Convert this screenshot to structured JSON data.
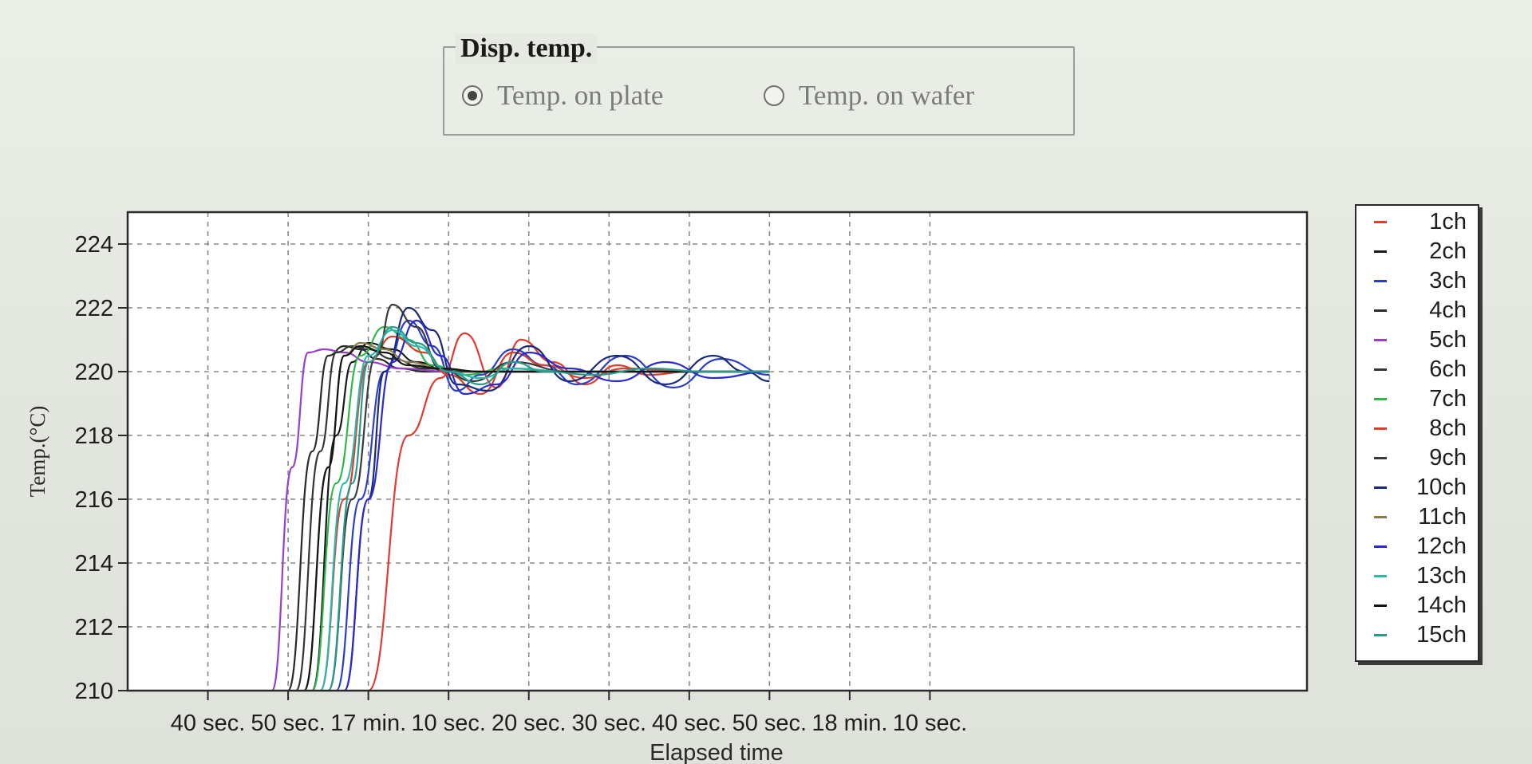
{
  "disp_temp": {
    "title": "Disp. temp.",
    "options": [
      {
        "label": "Temp. on plate",
        "selected": true
      },
      {
        "label": "Temp. on wafer",
        "selected": false
      }
    ]
  },
  "chart_data": {
    "type": "line",
    "xlabel": "Elapsed time",
    "ylabel": "Temp.(°C)",
    "ylim": [
      210,
      225
    ],
    "yticks": [
      210,
      212,
      214,
      216,
      218,
      220,
      222,
      224
    ],
    "xlim": [
      0,
      147
    ],
    "xticks": [
      {
        "t": 10,
        "label": "40 sec."
      },
      {
        "t": 20,
        "label": "50 sec."
      },
      {
        "t": 30,
        "label": "17 min."
      },
      {
        "t": 40,
        "label": "10 sec."
      },
      {
        "t": 50,
        "label": "20 sec."
      },
      {
        "t": 60,
        "label": "30 sec."
      },
      {
        "t": 70,
        "label": "40 sec."
      },
      {
        "t": 80,
        "label": "50 sec."
      },
      {
        "t": 90,
        "label": "18 min."
      },
      {
        "t": 100,
        "label": "10 sec."
      }
    ],
    "grid": true,
    "legend_position": "right",
    "series": [
      {
        "name": "1ch",
        "color": "#e03b2e",
        "x": [
          30,
          35,
          39,
          42,
          46,
          49,
          53,
          57,
          61,
          65,
          70,
          80
        ],
        "y": [
          210,
          218,
          219.8,
          221.2,
          219.5,
          221,
          220.3,
          219.6,
          220.2,
          219.9,
          220,
          220
        ]
      },
      {
        "name": "2ch",
        "color": "#1a1a1a",
        "x": [
          23,
          26,
          28,
          30,
          33,
          36,
          40,
          45,
          55,
          70,
          80
        ],
        "y": [
          210,
          218,
          220.3,
          220.9,
          220.7,
          220.3,
          220,
          220,
          220,
          220,
          220
        ]
      },
      {
        "name": "3ch",
        "color": "#2a3ec8",
        "x": [
          26,
          29,
          32,
          35,
          38,
          41,
          44,
          48,
          52,
          56,
          62,
          68,
          74,
          80
        ],
        "y": [
          210,
          216,
          220,
          221.6,
          220.8,
          219.4,
          219.9,
          220.7,
          220.2,
          219.6,
          220.5,
          219.5,
          220.4,
          219.9
        ]
      },
      {
        "name": "4ch",
        "color": "#2a2a2a",
        "x": [
          20,
          23,
          25,
          27,
          29,
          31,
          34,
          37,
          40,
          45,
          55,
          70,
          80
        ],
        "y": [
          210,
          217.5,
          220.5,
          220.8,
          220.7,
          220.4,
          220.1,
          220,
          220,
          220,
          220,
          220,
          220
        ]
      },
      {
        "name": "5ch",
        "color": "#9a3ec8",
        "x": [
          18,
          20.5,
          22.5,
          24.5,
          27,
          30,
          34,
          40,
          50,
          60,
          70,
          80
        ],
        "y": [
          210,
          217,
          220.6,
          220.7,
          220.6,
          220.3,
          220.1,
          220,
          220,
          220,
          220,
          220
        ]
      },
      {
        "name": "6ch",
        "color": "#2e3a2e",
        "x": [
          21,
          24,
          26,
          28,
          30,
          33,
          37,
          42,
          50,
          60,
          70,
          80
        ],
        "y": [
          210,
          217.5,
          220.6,
          220.8,
          220.7,
          220.4,
          220.1,
          220,
          220,
          220,
          220,
          220
        ]
      },
      {
        "name": "7ch",
        "color": "#2fb84a",
        "x": [
          23,
          26,
          29,
          32,
          35,
          38,
          42,
          47,
          55,
          65,
          80
        ],
        "y": [
          210,
          216.5,
          220.5,
          221.4,
          221,
          220.2,
          219.9,
          220.1,
          220,
          220,
          220
        ]
      },
      {
        "name": "8ch",
        "color": "#d8402c",
        "x": [
          24,
          27,
          30,
          33,
          37,
          40,
          44,
          48,
          52,
          57,
          62,
          70,
          80
        ],
        "y": [
          210,
          216,
          220.3,
          221.1,
          220.6,
          219.9,
          219.3,
          220.6,
          220.2,
          219.8,
          220.1,
          220,
          220
        ]
      },
      {
        "name": "9ch",
        "color": "#3a3a3a",
        "x": [
          25,
          28,
          31,
          33,
          36,
          39,
          43,
          48,
          55,
          65,
          80
        ],
        "y": [
          210,
          216,
          220.5,
          222.1,
          221.4,
          220.1,
          219.7,
          220.3,
          220,
          220,
          220
        ]
      },
      {
        "name": "10ch",
        "color": "#1a2a7a",
        "x": [
          27,
          30,
          32,
          35,
          38,
          41,
          45,
          50,
          55,
          61,
          67,
          73,
          77,
          80
        ],
        "y": [
          210,
          216,
          220,
          222,
          221.3,
          219.6,
          219.4,
          220.8,
          219.7,
          220.5,
          219.6,
          220.5,
          220,
          219.7
        ]
      },
      {
        "name": "11ch",
        "color": "#8a7a4a",
        "x": [
          22,
          25,
          27,
          29,
          32,
          35,
          39,
          44,
          50,
          60,
          80
        ],
        "y": [
          210,
          217,
          220.5,
          220.9,
          220.7,
          220.3,
          220.1,
          220,
          220,
          220,
          220
        ]
      },
      {
        "name": "12ch",
        "color": "#2a2ad0",
        "x": [
          27,
          30,
          33,
          36,
          39,
          42,
          46,
          50,
          55,
          61,
          67,
          73,
          80
        ],
        "y": [
          210,
          216,
          220.3,
          221.6,
          220.5,
          219.3,
          219.6,
          220.6,
          220.1,
          219.7,
          220.3,
          219.8,
          220
        ]
      },
      {
        "name": "13ch",
        "color": "#2ab8b0",
        "x": [
          24,
          27,
          30,
          33,
          36,
          40,
          44,
          48,
          55,
          65,
          80
        ],
        "y": [
          210,
          216.5,
          220.5,
          221.3,
          220.8,
          220,
          219.8,
          220.1,
          220,
          220,
          220
        ]
      },
      {
        "name": "14ch",
        "color": "#141414",
        "x": [
          22,
          25,
          27,
          29,
          32,
          35,
          39,
          44,
          50,
          60,
          80
        ],
        "y": [
          210,
          217,
          220.5,
          220.8,
          220.6,
          220.2,
          220.1,
          220,
          220,
          220,
          220
        ]
      },
      {
        "name": "15ch",
        "color": "#2a9a8a",
        "x": [
          25,
          28,
          30,
          33,
          36,
          40,
          44,
          48,
          52,
          58,
          65,
          72,
          80
        ],
        "y": [
          210,
          216.5,
          220.3,
          221.4,
          220.9,
          220,
          219.6,
          220.3,
          220,
          219.9,
          220.1,
          220,
          220
        ]
      }
    ]
  }
}
